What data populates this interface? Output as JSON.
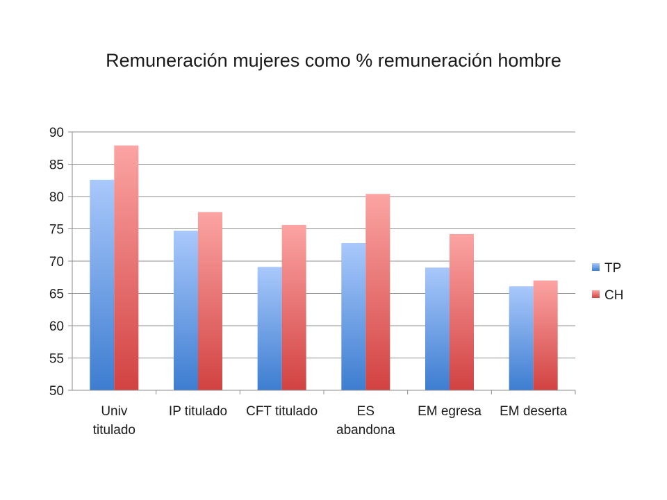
{
  "chart_data": {
    "type": "bar",
    "title": "Remuneración mujeres como % remuneración hombre",
    "xlabel": "",
    "ylabel": "",
    "ylim": [
      50,
      90
    ],
    "yticks": [
      50,
      55,
      60,
      65,
      70,
      75,
      80,
      85,
      90
    ],
    "grid": true,
    "legend_position": "right",
    "categories": [
      [
        "Univ",
        "titulado"
      ],
      [
        "IP titulado"
      ],
      [
        "CFT titulado"
      ],
      [
        "ES",
        "abandona"
      ],
      [
        "EM egresa"
      ],
      [
        "EM deserta"
      ]
    ],
    "series": [
      {
        "name": "TP",
        "values": [
          82.6,
          74.7,
          69.1,
          72.8,
          69.0,
          66.1
        ],
        "color_top": "#a9c8fb",
        "color_bottom": "#3d7dd0"
      },
      {
        "name": "CH",
        "values": [
          87.9,
          77.6,
          75.6,
          80.4,
          74.2,
          67.0
        ],
        "color_top": "#fba4a3",
        "color_bottom": "#d24242"
      }
    ]
  }
}
